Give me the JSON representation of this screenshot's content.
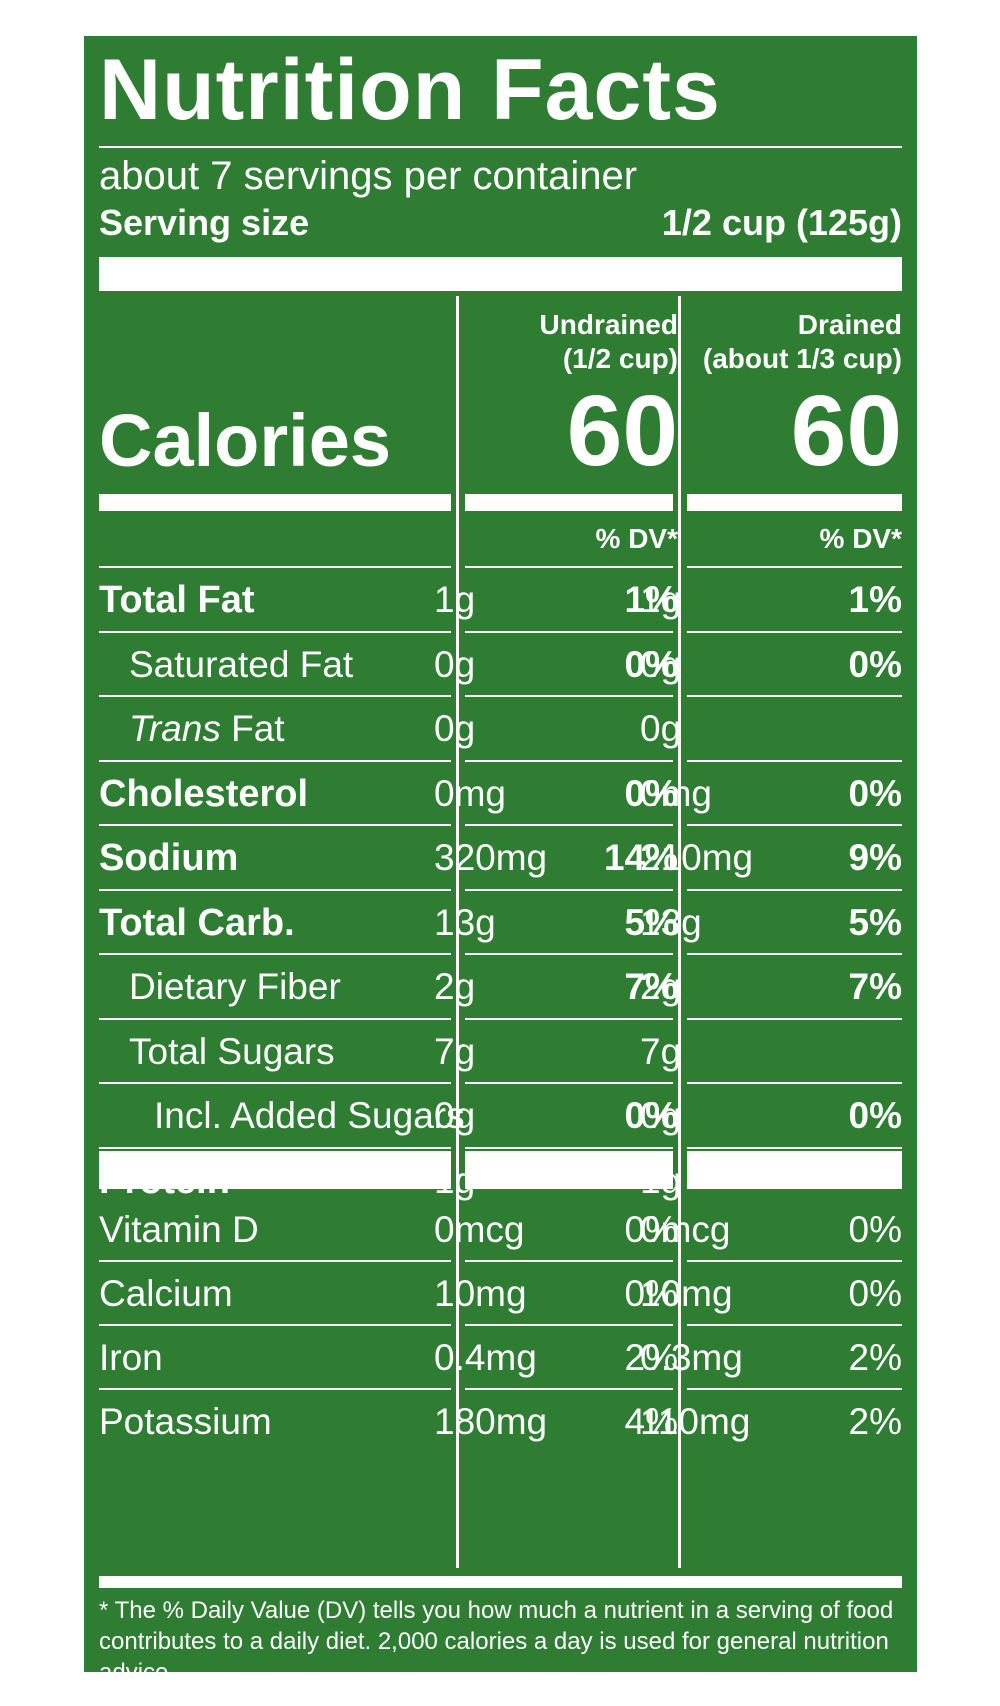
{
  "header": {
    "title": "Nutrition Facts",
    "servings": "about 7 servings per container",
    "serving_size_label": "Serving size",
    "serving_size_value": "1/2 cup (125g)"
  },
  "columns": [
    {
      "name_line1": "Undrained",
      "name_line2": "(1/2 cup)",
      "calories": "60",
      "dv_header": "% DV*"
    },
    {
      "name_line1": "Drained",
      "name_line2": "(about 1/3 cup)",
      "calories": "60",
      "dv_header": "% DV*"
    }
  ],
  "calories_label": "Calories",
  "nutrients": [
    {
      "label": "Total Fat",
      "bold": true,
      "indent": 0,
      "values": [
        {
          "amount": "1g",
          "dv": "1%"
        },
        {
          "amount": "1g",
          "dv": "1%"
        }
      ]
    },
    {
      "label": "Saturated Fat",
      "bold": false,
      "indent": 1,
      "values": [
        {
          "amount": "0g",
          "dv": "0%"
        },
        {
          "amount": "0g",
          "dv": "0%"
        }
      ]
    },
    {
      "label_italic": "Trans",
      "label": " Fat",
      "bold": false,
      "indent": 1,
      "values": [
        {
          "amount": "0g",
          "dv": ""
        },
        {
          "amount": "0g",
          "dv": ""
        }
      ]
    },
    {
      "label": "Cholesterol",
      "bold": true,
      "indent": 0,
      "values": [
        {
          "amount": "0mg",
          "dv": "0%"
        },
        {
          "amount": "0mg",
          "dv": "0%"
        }
      ]
    },
    {
      "label": "Sodium",
      "bold": true,
      "indent": 0,
      "values": [
        {
          "amount": "320mg",
          "dv": "14%"
        },
        {
          "amount": "210mg",
          "dv": "9%"
        }
      ]
    },
    {
      "label": "Total Carb.",
      "bold": true,
      "indent": 0,
      "values": [
        {
          "amount": "13g",
          "dv": "5%"
        },
        {
          "amount": "13g",
          "dv": "5%"
        }
      ]
    },
    {
      "label": "Dietary Fiber",
      "bold": false,
      "indent": 1,
      "values": [
        {
          "amount": "2g",
          "dv": "7%"
        },
        {
          "amount": "2g",
          "dv": "7%"
        }
      ]
    },
    {
      "label": "Total Sugars",
      "bold": false,
      "indent": 1,
      "values": [
        {
          "amount": "7g",
          "dv": ""
        },
        {
          "amount": "7g",
          "dv": ""
        }
      ]
    },
    {
      "label": "Incl. Added Sugars",
      "bold": false,
      "indent": 2,
      "values": [
        {
          "amount": "0g",
          "dv": "0%"
        },
        {
          "amount": "0g",
          "dv": "0%"
        }
      ]
    },
    {
      "label": "Protein",
      "bold": true,
      "indent": 0,
      "values": [
        {
          "amount": "1g",
          "dv": ""
        },
        {
          "amount": "1g",
          "dv": ""
        }
      ]
    }
  ],
  "vitamins": [
    {
      "label": "Vitamin D",
      "values": [
        {
          "amount": "0mcg",
          "dv": "0%"
        },
        {
          "amount": "0mcg",
          "dv": "0%"
        }
      ]
    },
    {
      "label": "Calcium",
      "values": [
        {
          "amount": "10mg",
          "dv": "0%"
        },
        {
          "amount": "10mg",
          "dv": "0%"
        }
      ]
    },
    {
      "label": "Iron",
      "values": [
        {
          "amount": "0.4mg",
          "dv": "2%"
        },
        {
          "amount": "0.3mg",
          "dv": "2%"
        }
      ]
    },
    {
      "label": "Potassium",
      "values": [
        {
          "amount": "180mg",
          "dv": "4%"
        },
        {
          "amount": "110mg",
          "dv": "2%"
        }
      ]
    }
  ],
  "footnote": "* The % Daily Value (DV) tells you how much a nutrient in a serving of food contributes to a daily diet. 2,000 calories a day is used for general nutrition advice.",
  "colors": {
    "panel": "#2e7d32",
    "ink": "#ffffff"
  }
}
